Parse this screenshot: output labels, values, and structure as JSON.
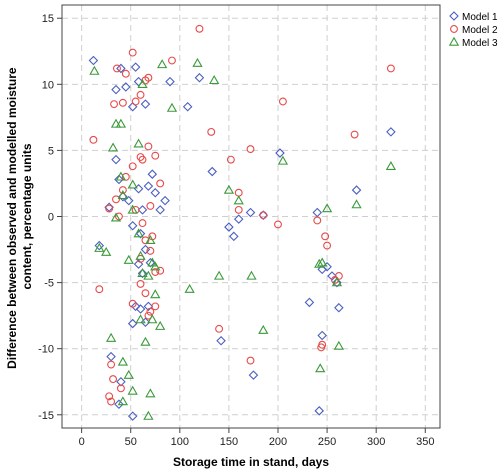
{
  "chart_data": {
    "type": "scatter",
    "xlabel": "Storage time in stand, days",
    "ylabel_lines": [
      "Difference between observed and modelled moisture",
      "content, percentage  units"
    ],
    "xlim": [
      -20,
      365
    ],
    "ylim": [
      -16,
      16
    ],
    "x_ticks": [
      0,
      50,
      100,
      150,
      200,
      250,
      300,
      350
    ],
    "y_ticks": [
      -15,
      -10,
      -5,
      0,
      5,
      10,
      15
    ],
    "grid": true,
    "legend_position": "top-right",
    "series": [
      {
        "name": "Model 1",
        "marker": "diamond",
        "color": "#4a5fc1",
        "points": [
          [
            12,
            11.8
          ],
          [
            35,
            9.6
          ],
          [
            40,
            11.2
          ],
          [
            45,
            9.8
          ],
          [
            52,
            8.3
          ],
          [
            58,
            10.2
          ],
          [
            65,
            8.5
          ],
          [
            55,
            11.3
          ],
          [
            90,
            10.2
          ],
          [
            108,
            8.3
          ],
          [
            120,
            10.5
          ],
          [
            133,
            3.4
          ],
          [
            202,
            4.8
          ],
          [
            315,
            6.4
          ],
          [
            280,
            2.0
          ],
          [
            35,
            4.3
          ],
          [
            38,
            2.8
          ],
          [
            42,
            1.5
          ],
          [
            28,
            0.7
          ],
          [
            48,
            1.2
          ],
          [
            52,
            -0.7
          ],
          [
            58,
            2.1
          ],
          [
            62,
            0.5
          ],
          [
            68,
            2.3
          ],
          [
            72,
            3.2
          ],
          [
            75,
            1.8
          ],
          [
            80,
            0.5
          ],
          [
            85,
            1.2
          ],
          [
            60,
            -1.3
          ],
          [
            65,
            -2.5
          ],
          [
            18,
            -2.2
          ],
          [
            58,
            -3.6
          ],
          [
            62,
            -4.3
          ],
          [
            70,
            -3.5
          ],
          [
            55,
            -6.8
          ],
          [
            60,
            -7.0
          ],
          [
            65,
            -8.0
          ],
          [
            68,
            -6.8
          ],
          [
            52,
            -8.1
          ],
          [
            30,
            -10.6
          ],
          [
            40,
            -12.5
          ],
          [
            38,
            -14.2
          ],
          [
            52,
            -15.1
          ],
          [
            150,
            -0.8
          ],
          [
            155,
            -1.5
          ],
          [
            160,
            -0.2
          ],
          [
            172,
            0.3
          ],
          [
            185,
            0.1
          ],
          [
            142,
            -9.4
          ],
          [
            175,
            -12.0
          ],
          [
            232,
            -6.5
          ],
          [
            245,
            -4.0
          ],
          [
            250,
            -3.8
          ],
          [
            255,
            -4.5
          ],
          [
            260,
            -5.0
          ],
          [
            262,
            -6.9
          ],
          [
            245,
            -9.0
          ],
          [
            242,
            -14.7
          ],
          [
            240,
            0.3
          ]
        ]
      },
      {
        "name": "Model 2",
        "marker": "circle",
        "color": "#e84a4a",
        "points": [
          [
            52,
            12.4
          ],
          [
            120,
            14.2
          ],
          [
            92,
            11.8
          ],
          [
            45,
            10.8
          ],
          [
            60,
            9.2
          ],
          [
            68,
            10.5
          ],
          [
            33,
            8.5
          ],
          [
            42,
            8.6
          ],
          [
            55,
            8.7
          ],
          [
            65,
            10.3
          ],
          [
            36,
            11.2
          ],
          [
            132,
            6.4
          ],
          [
            205,
            8.7
          ],
          [
            278,
            6.2
          ],
          [
            315,
            11.2
          ],
          [
            12,
            5.8
          ],
          [
            35,
            1.3
          ],
          [
            42,
            2.0
          ],
          [
            45,
            3.0
          ],
          [
            38,
            0.0
          ],
          [
            28,
            0.6
          ],
          [
            60,
            4.5
          ],
          [
            62,
            4.3
          ],
          [
            68,
            5.3
          ],
          [
            52,
            3.8
          ],
          [
            75,
            4.6
          ],
          [
            80,
            2.5
          ],
          [
            55,
            0.5
          ],
          [
            62,
            -0.5
          ],
          [
            70,
            0.8
          ],
          [
            72,
            -1.5
          ],
          [
            65,
            -1.8
          ],
          [
            70,
            -2.6
          ],
          [
            60,
            -3.2
          ],
          [
            75,
            -4.2
          ],
          [
            80,
            -4.1
          ],
          [
            18,
            -5.5
          ],
          [
            52,
            -6.6
          ],
          [
            60,
            -5.1
          ],
          [
            65,
            -5.8
          ],
          [
            68,
            -7.5
          ],
          [
            70,
            -7.2
          ],
          [
            75,
            -6.8
          ],
          [
            30,
            -11.2
          ],
          [
            32,
            -12.3
          ],
          [
            28,
            -13.6
          ],
          [
            30,
            -14.0
          ],
          [
            40,
            -13.0
          ],
          [
            172,
            5.1
          ],
          [
            152,
            4.3
          ],
          [
            160,
            1.8
          ],
          [
            160,
            0.5
          ],
          [
            140,
            -8.5
          ],
          [
            172,
            -10.9
          ],
          [
            185,
            0.1
          ],
          [
            200,
            -0.6
          ],
          [
            240,
            -0.3
          ],
          [
            248,
            -1.5
          ],
          [
            250,
            -2.2
          ],
          [
            258,
            -4.8
          ],
          [
            262,
            -4.5
          ],
          [
            245,
            -9.7
          ],
          [
            244,
            -9.9
          ]
        ]
      },
      {
        "name": "Model 3",
        "marker": "triangle",
        "color": "#3a9a3a",
        "points": [
          [
            13,
            11.0
          ],
          [
            62,
            10.0
          ],
          [
            82,
            11.5
          ],
          [
            118,
            11.6
          ],
          [
            135,
            10.3
          ],
          [
            35,
            7.0
          ],
          [
            40,
            7.0
          ],
          [
            32,
            5.2
          ],
          [
            52,
            2.4
          ],
          [
            58,
            5.5
          ],
          [
            92,
            8.2
          ],
          [
            150,
            2.0
          ],
          [
            160,
            1.2
          ],
          [
            205,
            4.2
          ],
          [
            315,
            3.8
          ],
          [
            280,
            0.9
          ],
          [
            40,
            3.0
          ],
          [
            35,
            -0.1
          ],
          [
            42,
            1.6
          ],
          [
            52,
            0.5
          ],
          [
            48,
            -3.3
          ],
          [
            58,
            -1.3
          ],
          [
            60,
            -3.0
          ],
          [
            70,
            -1.8
          ],
          [
            72,
            -3.5
          ],
          [
            75,
            -3.8
          ],
          [
            62,
            -4.3
          ],
          [
            68,
            -4.5
          ],
          [
            75,
            -5.9
          ],
          [
            18,
            -2.4
          ],
          [
            25,
            -2.7
          ],
          [
            60,
            -7.8
          ],
          [
            65,
            -9.5
          ],
          [
            72,
            -7.8
          ],
          [
            80,
            -8.3
          ],
          [
            110,
            -5.5
          ],
          [
            140,
            -4.5
          ],
          [
            173,
            -4.5
          ],
          [
            185,
            -8.6
          ],
          [
            30,
            -9.2
          ],
          [
            42,
            -11.0
          ],
          [
            48,
            -12.0
          ],
          [
            52,
            -13.2
          ],
          [
            70,
            -13.4
          ],
          [
            42,
            -14.0
          ],
          [
            68,
            -15.1
          ],
          [
            250,
            0.6
          ],
          [
            242,
            -3.6
          ],
          [
            260,
            -5.0
          ],
          [
            262,
            -9.8
          ],
          [
            243,
            -11.5
          ],
          [
            245,
            -3.5
          ]
        ]
      }
    ]
  }
}
